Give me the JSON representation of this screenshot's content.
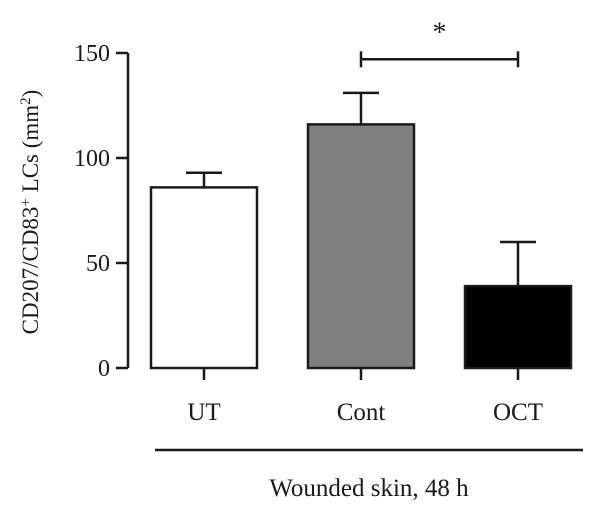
{
  "chart_data": {
    "type": "bar",
    "title": "",
    "ylabel_main": "CD207/CD83",
    "ylabel_sup": "+",
    "ylabel_rest": " LCs (mm",
    "ylabel_sup2": "2",
    "ylabel_end": ")",
    "xlabel": "",
    "group_label": "Wounded skin, 48 h",
    "ylim": [
      0,
      150
    ],
    "yticks": [
      0,
      50,
      100,
      150
    ],
    "categories": [
      "UT",
      "Cont",
      "OCT"
    ],
    "values": [
      86,
      116,
      39
    ],
    "errors": [
      7,
      15,
      21
    ],
    "colors": [
      "#ffffff",
      "#808080",
      "#000000"
    ],
    "significance": {
      "from": "Cont",
      "to": "OCT",
      "label": "*",
      "y_value": 147
    }
  }
}
